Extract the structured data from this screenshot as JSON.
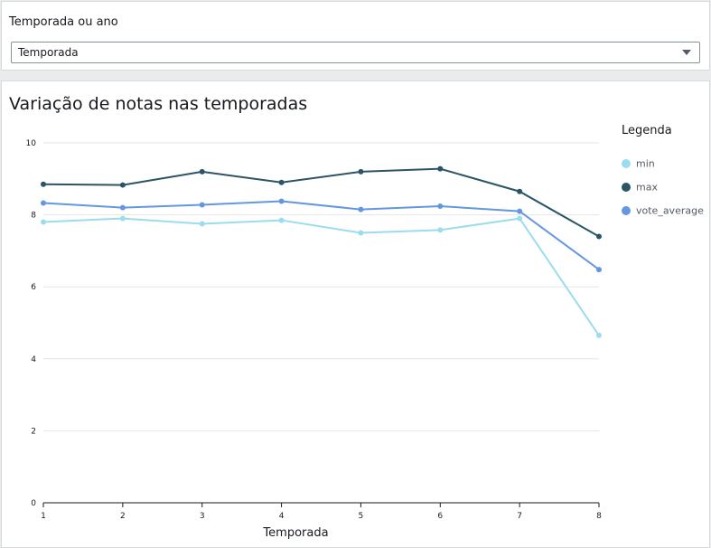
{
  "control": {
    "label": "Temporada ou ano",
    "selected": "Temporada"
  },
  "chart_data": {
    "type": "line",
    "title": "Variação de notas nas temporadas",
    "xlabel": "Temporada",
    "ylabel": "",
    "x": [
      1,
      2,
      3,
      4,
      5,
      6,
      7,
      8
    ],
    "ylim": [
      0,
      10
    ],
    "yticks": [
      0,
      2,
      4,
      6,
      8,
      10
    ],
    "grid": true,
    "legend_title": "Legenda",
    "legend_position": "right",
    "series": [
      {
        "name": "min",
        "color": "#9bdcef",
        "values": [
          7.8,
          7.9,
          7.75,
          7.85,
          7.5,
          7.58,
          7.9,
          4.65
        ]
      },
      {
        "name": "max",
        "color": "#2a5566",
        "values": [
          8.85,
          8.83,
          9.2,
          8.9,
          9.2,
          9.28,
          8.65,
          7.4
        ]
      },
      {
        "name": "vote_average",
        "color": "#6497e0",
        "values": [
          8.33,
          8.2,
          8.28,
          8.38,
          8.15,
          8.24,
          8.1,
          6.48
        ]
      }
    ]
  }
}
